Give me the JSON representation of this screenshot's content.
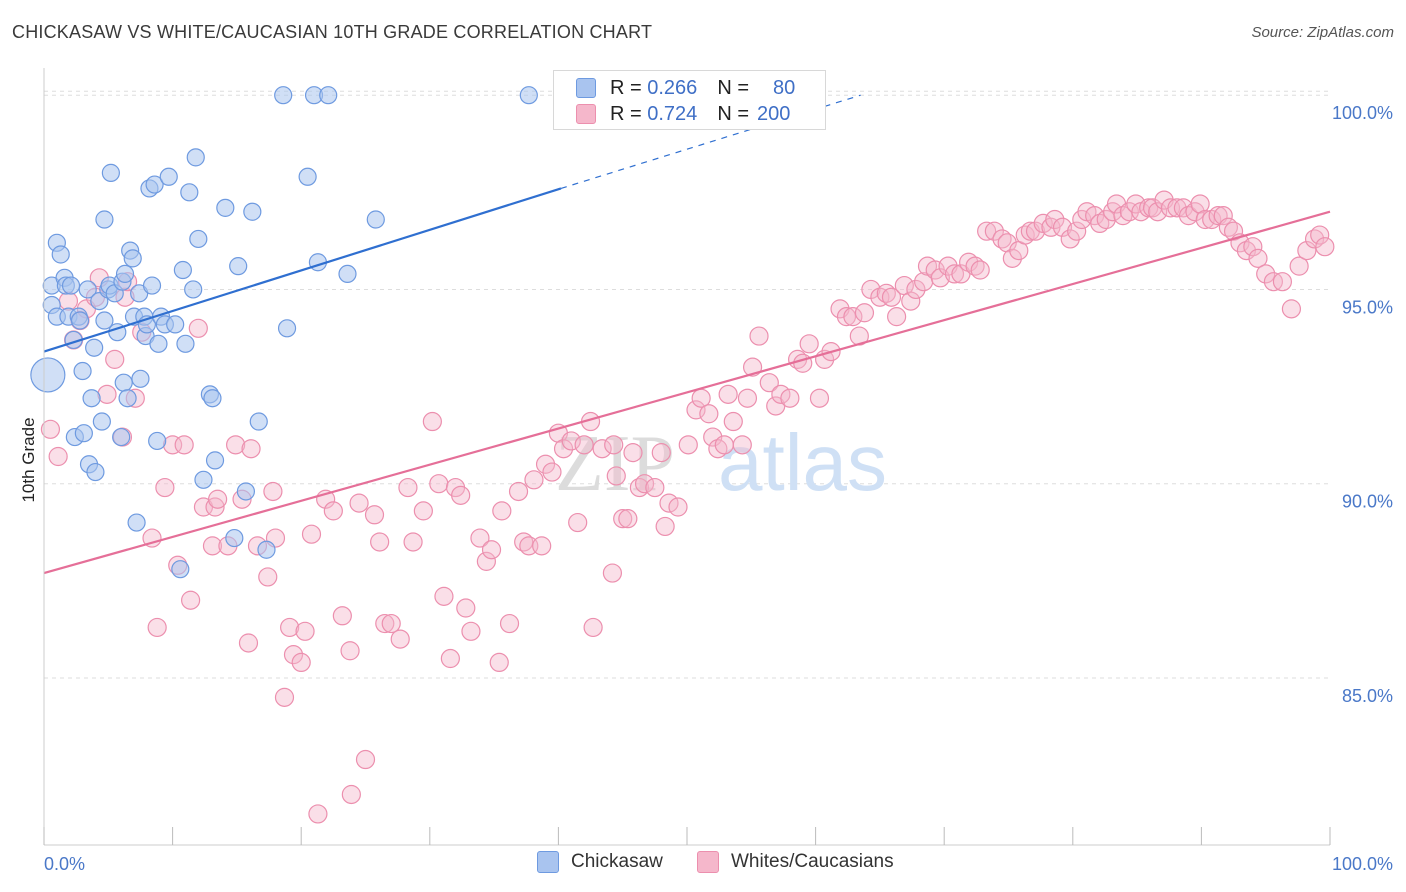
{
  "header": {
    "title": "CHICKASAW VS WHITE/CAUCASIAN 10TH GRADE CORRELATION CHART",
    "source": "Source: ZipAtlas.com"
  },
  "legend": {
    "rows": [
      {
        "r_label": "R =",
        "r_value": "0.266",
        "n_label": "N =",
        "n_value": "80",
        "color": "#a9c4ef"
      },
      {
        "r_label": "R =",
        "r_value": "0.724",
        "n_label": "N =",
        "n_value": "200",
        "color": "#f5b7cb"
      }
    ]
  },
  "bottom_legend": {
    "chickasaw": "Chickasaw",
    "whites": "Whites/Caucasians"
  },
  "watermark": {
    "zip": "ZIP",
    "atlas": "atlas"
  },
  "colors": {
    "blue_fill": "#a9c4ef",
    "blue_stroke": "#6e9ae0",
    "blue_line": "#2f6fd0",
    "pink_fill": "#f5b7cb",
    "pink_stroke": "#ec8fae",
    "pink_line": "#e56f98",
    "tick_text": "#4a78c8"
  },
  "chart_data": {
    "type": "scatter",
    "title": "CHICKASAW VS WHITE/CAUCASIAN 10TH GRADE CORRELATION CHART",
    "xlabel": "",
    "ylabel": "10th Grade",
    "xlim": [
      0,
      100
    ],
    "ylim": [
      80.7,
      100.7
    ],
    "x_tick_labels": [
      "0.0%",
      "100.0%"
    ],
    "y_ticks": [
      85,
      90,
      95,
      100
    ],
    "y_tick_labels": [
      "85.0%",
      "90.0%",
      "95.0%",
      "100.0%"
    ],
    "grid": true,
    "legend_position": "top-center",
    "series": [
      {
        "name": "Chickasaw",
        "R": 0.266,
        "N": 80,
        "trend": {
          "x0": 0,
          "y0": 93.4,
          "x1": 40.2,
          "y1": 97.6,
          "dashed_to_x": 63.5,
          "dashed_to_y": 100.0
        },
        "points": [
          [
            0.3,
            92.8
          ],
          [
            0.6,
            95.1
          ],
          [
            0.6,
            94.6
          ],
          [
            1.0,
            96.2
          ],
          [
            1.0,
            94.3
          ],
          [
            1.3,
            95.9
          ],
          [
            1.6,
            95.3
          ],
          [
            1.7,
            95.1
          ],
          [
            1.9,
            94.3
          ],
          [
            2.1,
            95.1
          ],
          [
            2.3,
            93.7
          ],
          [
            2.4,
            91.2
          ],
          [
            2.7,
            94.3
          ],
          [
            2.8,
            94.2
          ],
          [
            3.0,
            92.9
          ],
          [
            3.1,
            91.3
          ],
          [
            3.4,
            95.0
          ],
          [
            3.5,
            90.5
          ],
          [
            3.7,
            92.2
          ],
          [
            3.9,
            93.5
          ],
          [
            4.0,
            90.3
          ],
          [
            4.3,
            94.7
          ],
          [
            4.5,
            91.6
          ],
          [
            4.7,
            96.8
          ],
          [
            4.7,
            94.2
          ],
          [
            5.0,
            95.0
          ],
          [
            5.1,
            95.1
          ],
          [
            5.2,
            98.0
          ],
          [
            5.5,
            94.9
          ],
          [
            5.7,
            93.9
          ],
          [
            6.0,
            91.2
          ],
          [
            6.1,
            95.2
          ],
          [
            6.2,
            92.6
          ],
          [
            6.3,
            95.4
          ],
          [
            6.5,
            92.2
          ],
          [
            6.7,
            96.0
          ],
          [
            6.9,
            95.8
          ],
          [
            7.0,
            94.3
          ],
          [
            7.2,
            89.0
          ],
          [
            7.4,
            94.9
          ],
          [
            7.5,
            92.7
          ],
          [
            7.8,
            94.3
          ],
          [
            7.9,
            93.8
          ],
          [
            8.0,
            94.1
          ],
          [
            8.2,
            97.6
          ],
          [
            8.4,
            95.1
          ],
          [
            8.6,
            97.7
          ],
          [
            8.8,
            91.1
          ],
          [
            8.9,
            93.6
          ],
          [
            9.1,
            94.3
          ],
          [
            9.4,
            94.1
          ],
          [
            9.7,
            97.9
          ],
          [
            10.2,
            94.1
          ],
          [
            10.6,
            87.8
          ],
          [
            10.8,
            95.5
          ],
          [
            11.0,
            93.6
          ],
          [
            11.3,
            97.5
          ],
          [
            11.6,
            95.0
          ],
          [
            11.8,
            98.4
          ],
          [
            12.0,
            96.3
          ],
          [
            12.4,
            90.1
          ],
          [
            12.9,
            92.3
          ],
          [
            13.1,
            92.2
          ],
          [
            13.3,
            90.6
          ],
          [
            14.1,
            97.1
          ],
          [
            14.8,
            88.6
          ],
          [
            15.1,
            95.6
          ],
          [
            15.7,
            89.8
          ],
          [
            16.2,
            97.0
          ],
          [
            16.7,
            91.6
          ],
          [
            17.3,
            88.3
          ],
          [
            18.6,
            100.0
          ],
          [
            18.9,
            94.0
          ],
          [
            20.5,
            97.9
          ],
          [
            21.0,
            100.0
          ],
          [
            21.3,
            95.7
          ],
          [
            22.1,
            100.0
          ],
          [
            23.6,
            95.4
          ],
          [
            25.8,
            96.8
          ],
          [
            37.7,
            100.0
          ]
        ]
      },
      {
        "name": "Whites/Caucasians",
        "R": 0.724,
        "N": 200,
        "trend": {
          "x0": 0,
          "y0": 87.7,
          "x1": 100,
          "y1": 97.0
        },
        "points": [
          [
            0.5,
            91.4
          ],
          [
            1.1,
            90.7
          ],
          [
            1.9,
            94.7
          ],
          [
            2.3,
            93.7
          ],
          [
            2.8,
            94.2
          ],
          [
            3.3,
            94.5
          ],
          [
            4.0,
            94.8
          ],
          [
            4.3,
            95.3
          ],
          [
            4.9,
            92.3
          ],
          [
            5.5,
            93.2
          ],
          [
            6.1,
            91.2
          ],
          [
            6.3,
            94.8
          ],
          [
            6.5,
            95.2
          ],
          [
            7.1,
            92.2
          ],
          [
            7.6,
            93.9
          ],
          [
            8.4,
            88.6
          ],
          [
            8.8,
            86.3
          ],
          [
            9.4,
            89.9
          ],
          [
            10.0,
            91.0
          ],
          [
            10.4,
            87.9
          ],
          [
            10.9,
            91.0
          ],
          [
            11.4,
            87.0
          ],
          [
            12.0,
            94.0
          ],
          [
            12.4,
            89.4
          ],
          [
            13.1,
            88.4
          ],
          [
            13.3,
            89.4
          ],
          [
            13.5,
            89.6
          ],
          [
            14.3,
            88.4
          ],
          [
            14.9,
            91.0
          ],
          [
            15.4,
            89.6
          ],
          [
            15.9,
            85.9
          ],
          [
            16.1,
            90.9
          ],
          [
            16.6,
            88.4
          ],
          [
            17.4,
            87.6
          ],
          [
            17.8,
            89.8
          ],
          [
            18.0,
            88.6
          ],
          [
            18.7,
            84.5
          ],
          [
            19.1,
            86.3
          ],
          [
            19.4,
            85.6
          ],
          [
            20.0,
            85.4
          ],
          [
            20.3,
            86.2
          ],
          [
            20.8,
            88.7
          ],
          [
            21.3,
            81.5
          ],
          [
            21.9,
            89.6
          ],
          [
            22.5,
            89.3
          ],
          [
            23.2,
            86.6
          ],
          [
            23.8,
            85.7
          ],
          [
            23.9,
            82.0
          ],
          [
            24.5,
            89.5
          ],
          [
            25.0,
            82.9
          ],
          [
            25.7,
            89.2
          ],
          [
            26.1,
            88.5
          ],
          [
            26.5,
            86.4
          ],
          [
            27.0,
            86.4
          ],
          [
            27.7,
            86.0
          ],
          [
            28.3,
            89.9
          ],
          [
            28.7,
            88.5
          ],
          [
            29.5,
            89.3
          ],
          [
            30.2,
            91.6
          ],
          [
            30.7,
            90.0
          ],
          [
            31.1,
            87.1
          ],
          [
            31.6,
            85.5
          ],
          [
            32.0,
            89.9
          ],
          [
            32.4,
            89.7
          ],
          [
            32.8,
            86.8
          ],
          [
            33.2,
            86.2
          ],
          [
            33.9,
            88.6
          ],
          [
            34.4,
            88.0
          ],
          [
            34.8,
            88.3
          ],
          [
            35.4,
            85.4
          ],
          [
            35.6,
            89.3
          ],
          [
            36.2,
            86.4
          ],
          [
            36.9,
            89.8
          ],
          [
            37.3,
            88.5
          ],
          [
            37.7,
            88.4
          ],
          [
            38.1,
            90.1
          ],
          [
            38.7,
            88.4
          ],
          [
            39.0,
            90.5
          ],
          [
            39.5,
            90.3
          ],
          [
            40.0,
            91.3
          ],
          [
            40.4,
            90.9
          ],
          [
            41.0,
            91.1
          ],
          [
            41.5,
            89.0
          ],
          [
            42.0,
            91.0
          ],
          [
            42.5,
            91.6
          ],
          [
            42.7,
            86.3
          ],
          [
            43.4,
            90.9
          ],
          [
            44.2,
            87.7
          ],
          [
            44.3,
            91.0
          ],
          [
            44.5,
            90.2
          ],
          [
            45.0,
            89.1
          ],
          [
            45.4,
            89.1
          ],
          [
            45.8,
            90.8
          ],
          [
            46.3,
            89.9
          ],
          [
            46.7,
            90.0
          ],
          [
            47.5,
            89.9
          ],
          [
            48.0,
            90.8
          ],
          [
            48.3,
            88.9
          ],
          [
            48.6,
            89.5
          ],
          [
            49.3,
            89.4
          ],
          [
            50.1,
            91.0
          ],
          [
            50.7,
            91.9
          ],
          [
            51.1,
            92.2
          ],
          [
            51.7,
            91.8
          ],
          [
            52.0,
            91.2
          ],
          [
            52.4,
            90.9
          ],
          [
            52.9,
            91.0
          ],
          [
            53.2,
            92.3
          ],
          [
            53.6,
            91.6
          ],
          [
            54.3,
            91.0
          ],
          [
            54.7,
            92.2
          ],
          [
            55.1,
            93.0
          ],
          [
            55.6,
            93.8
          ],
          [
            56.4,
            92.6
          ],
          [
            56.9,
            92.0
          ],
          [
            57.3,
            92.3
          ],
          [
            58.0,
            92.2
          ],
          [
            58.6,
            93.2
          ],
          [
            59.0,
            93.1
          ],
          [
            59.5,
            93.6
          ],
          [
            60.3,
            92.2
          ],
          [
            60.7,
            93.2
          ],
          [
            61.2,
            93.4
          ],
          [
            61.9,
            94.5
          ],
          [
            62.4,
            94.3
          ],
          [
            62.9,
            94.3
          ],
          [
            63.4,
            93.8
          ],
          [
            63.8,
            94.4
          ],
          [
            64.3,
            95.0
          ],
          [
            65.0,
            94.8
          ],
          [
            65.5,
            94.9
          ],
          [
            65.9,
            94.8
          ],
          [
            66.3,
            94.3
          ],
          [
            66.9,
            95.1
          ],
          [
            67.4,
            94.7
          ],
          [
            67.8,
            95.0
          ],
          [
            68.4,
            95.2
          ],
          [
            68.7,
            95.6
          ],
          [
            69.3,
            95.5
          ],
          [
            69.7,
            95.3
          ],
          [
            70.3,
            95.6
          ],
          [
            70.8,
            95.4
          ],
          [
            71.3,
            95.4
          ],
          [
            71.9,
            95.7
          ],
          [
            72.4,
            95.6
          ],
          [
            72.8,
            95.5
          ],
          [
            73.3,
            96.5
          ],
          [
            73.9,
            96.5
          ],
          [
            74.5,
            96.3
          ],
          [
            74.9,
            96.2
          ],
          [
            75.3,
            95.8
          ],
          [
            75.8,
            96.0
          ],
          [
            76.3,
            96.4
          ],
          [
            76.7,
            96.5
          ],
          [
            77.1,
            96.5
          ],
          [
            77.7,
            96.7
          ],
          [
            78.3,
            96.6
          ],
          [
            78.6,
            96.8
          ],
          [
            79.2,
            96.6
          ],
          [
            79.8,
            96.3
          ],
          [
            80.3,
            96.5
          ],
          [
            80.7,
            96.8
          ],
          [
            81.1,
            97.0
          ],
          [
            81.7,
            96.9
          ],
          [
            82.1,
            96.7
          ],
          [
            82.6,
            96.8
          ],
          [
            83.1,
            97.0
          ],
          [
            83.4,
            97.2
          ],
          [
            83.9,
            96.9
          ],
          [
            84.4,
            97.0
          ],
          [
            84.9,
            97.2
          ],
          [
            85.3,
            97.0
          ],
          [
            85.9,
            97.1
          ],
          [
            86.2,
            97.1
          ],
          [
            86.6,
            97.0
          ],
          [
            87.1,
            97.3
          ],
          [
            87.6,
            97.1
          ],
          [
            88.1,
            97.1
          ],
          [
            88.6,
            97.1
          ],
          [
            89.0,
            96.9
          ],
          [
            89.5,
            97.0
          ],
          [
            89.9,
            97.2
          ],
          [
            90.3,
            96.8
          ],
          [
            90.8,
            96.8
          ],
          [
            91.3,
            96.9
          ],
          [
            91.7,
            96.9
          ],
          [
            92.1,
            96.6
          ],
          [
            92.5,
            96.5
          ],
          [
            93.0,
            96.2
          ],
          [
            93.5,
            96.0
          ],
          [
            94.0,
            96.1
          ],
          [
            94.4,
            95.8
          ],
          [
            95.0,
            95.4
          ],
          [
            95.6,
            95.2
          ],
          [
            96.3,
            95.2
          ],
          [
            97.0,
            94.5
          ],
          [
            97.6,
            95.6
          ],
          [
            98.2,
            96.0
          ],
          [
            98.8,
            96.3
          ],
          [
            99.2,
            96.4
          ],
          [
            99.6,
            96.1
          ]
        ]
      }
    ]
  }
}
